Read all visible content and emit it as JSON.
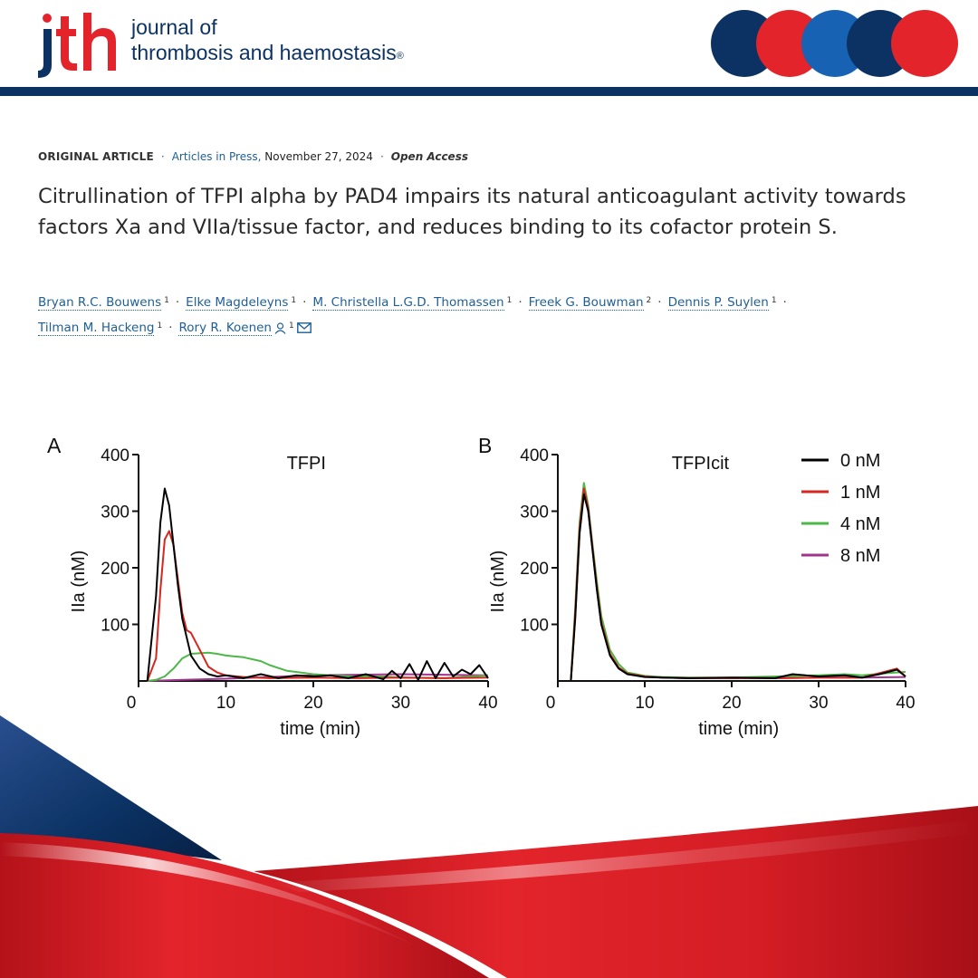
{
  "header": {
    "logo_text": "jth",
    "journal_line1": "journal of",
    "journal_line2": "thrombosis and haemostasis",
    "registered_mark": "®",
    "colors": {
      "navy": "#0b3263",
      "red": "#e3242b",
      "blue": "#1762b3"
    }
  },
  "article": {
    "type": "ORIGINAL ARTICLE",
    "status": "Articles in Press,",
    "date": "November 27, 2024",
    "access": "Open Access",
    "title": "Citrullination of TFPI alpha by PAD4 impairs its natural anticoagulant activity towards factors Xa and VIIa/tissue factor, and reduces binding to its cofactor protein S.",
    "authors": [
      {
        "name": "Bryan R.C. Bouwens",
        "aff": "1"
      },
      {
        "name": "Elke Magdeleyns",
        "aff": "1"
      },
      {
        "name": "M. Christella L.G.D. Thomassen",
        "aff": "1"
      },
      {
        "name": "Freek G. Bouwman",
        "aff": "2"
      },
      {
        "name": "Dennis P. Suylen",
        "aff": "1"
      },
      {
        "name": "Tilman M. Hackeng",
        "aff": "1"
      },
      {
        "name": "Rory R. Koenen",
        "aff": "1",
        "icons": [
          "person-icon",
          "mail-icon"
        ]
      }
    ]
  },
  "chart_data": [
    {
      "type": "line",
      "panel": "A",
      "title": "TFPI",
      "xlabel": "time (min)",
      "ylabel": "IIa (nM)",
      "xlim": [
        0,
        40
      ],
      "ylim": [
        0,
        400
      ],
      "xticks": [
        0,
        10,
        20,
        30,
        40
      ],
      "yticks": [
        100,
        200,
        300,
        400
      ],
      "grid": false,
      "series": [
        {
          "name": "0 nM",
          "color": "#000000",
          "x": [
            1,
            2,
            2.5,
            3,
            3.5,
            4,
            4.5,
            5,
            6,
            7,
            8,
            9,
            10,
            12,
            14,
            16,
            18,
            20,
            22,
            24,
            26,
            28,
            29,
            30,
            31,
            32,
            33,
            34,
            35,
            36,
            37,
            38,
            39,
            40
          ],
          "y": [
            0,
            150,
            280,
            340,
            310,
            240,
            170,
            110,
            45,
            22,
            12,
            8,
            10,
            5,
            12,
            5,
            10,
            8,
            10,
            5,
            12,
            3,
            18,
            5,
            30,
            2,
            35,
            5,
            32,
            8,
            20,
            12,
            28,
            5
          ]
        },
        {
          "name": "1 nM",
          "color": "#d7261e",
          "x": [
            1,
            2,
            2.5,
            3,
            3.5,
            4,
            4.5,
            5,
            5.5,
            6,
            7,
            8,
            9,
            10,
            12,
            15,
            20,
            25,
            30,
            35,
            40
          ],
          "y": [
            0,
            40,
            160,
            250,
            265,
            240,
            180,
            120,
            90,
            85,
            55,
            25,
            15,
            10,
            7,
            5,
            6,
            5,
            6,
            5,
            6
          ]
        },
        {
          "name": "4 nM",
          "color": "#4cb848",
          "x": [
            1,
            2,
            3,
            4,
            5,
            6,
            7,
            8,
            9,
            10,
            12,
            14,
            15,
            17,
            19,
            20,
            22,
            25,
            28,
            30,
            35,
            38,
            40
          ],
          "y": [
            0,
            2,
            8,
            22,
            40,
            48,
            49,
            50,
            48,
            45,
            42,
            35,
            28,
            18,
            14,
            12,
            10,
            8,
            8,
            6,
            5,
            8,
            10
          ]
        },
        {
          "name": "8 nM",
          "color": "#a2338f",
          "x": [
            1,
            5,
            10,
            15,
            20,
            25,
            30,
            35,
            40
          ],
          "y": [
            0,
            2,
            4,
            7,
            10,
            11,
            12,
            11,
            10
          ]
        }
      ]
    },
    {
      "type": "line",
      "panel": "B",
      "title": "TFPIcit",
      "xlabel": "time (min)",
      "ylabel": "IIa (nM)",
      "xlim": [
        0,
        40
      ],
      "ylim": [
        0,
        400
      ],
      "xticks": [
        0,
        10,
        20,
        30,
        40
      ],
      "yticks": [
        100,
        200,
        300,
        400
      ],
      "grid": false,
      "legend": "top-right",
      "series": [
        {
          "name": "0 nM",
          "color": "#000000",
          "x": [
            1.5,
            2,
            2.5,
            3,
            3.5,
            4,
            4.5,
            5,
            6,
            7,
            8,
            10,
            12,
            15,
            20,
            25,
            27,
            30,
            33,
            35,
            37,
            39,
            40
          ],
          "y": [
            0,
            110,
            260,
            330,
            300,
            230,
            160,
            100,
            45,
            22,
            12,
            7,
            6,
            5,
            6,
            5,
            12,
            8,
            10,
            6,
            12,
            20,
            8
          ]
        },
        {
          "name": "1 nM",
          "color": "#d7261e",
          "x": [
            1.5,
            2,
            2.5,
            3,
            3.5,
            4,
            4.5,
            5,
            6,
            7,
            8,
            10,
            12,
            15,
            20,
            25,
            30,
            35,
            39,
            40
          ],
          "y": [
            0,
            120,
            270,
            340,
            305,
            235,
            165,
            105,
            48,
            24,
            13,
            8,
            6,
            5,
            5,
            5,
            6,
            6,
            22,
            8
          ]
        },
        {
          "name": "4 nM",
          "color": "#4cb848",
          "x": [
            1.5,
            2,
            2.5,
            3,
            3.5,
            4,
            4.5,
            5,
            6,
            7,
            8,
            10,
            12,
            15,
            20,
            25,
            30,
            33,
            35,
            38,
            40
          ],
          "y": [
            0,
            130,
            280,
            350,
            310,
            240,
            175,
            115,
            55,
            30,
            15,
            9,
            7,
            6,
            6,
            8,
            10,
            12,
            10,
            14,
            16
          ]
        },
        {
          "name": "8 nM",
          "color": "#a2338f",
          "x": [
            1.5,
            2,
            2.5,
            3,
            3.5,
            4,
            4.5,
            5,
            6,
            7,
            8,
            10,
            12,
            15,
            20,
            25,
            30,
            35,
            40
          ],
          "y": [
            0,
            115,
            265,
            335,
            300,
            232,
            162,
            102,
            46,
            23,
            12,
            8,
            6,
            5,
            5,
            5,
            6,
            6,
            7
          ]
        }
      ]
    }
  ]
}
